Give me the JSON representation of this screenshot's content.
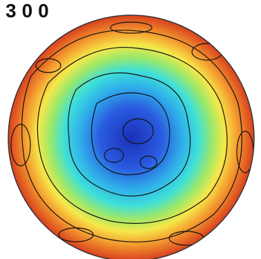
{
  "label": "300"
}
